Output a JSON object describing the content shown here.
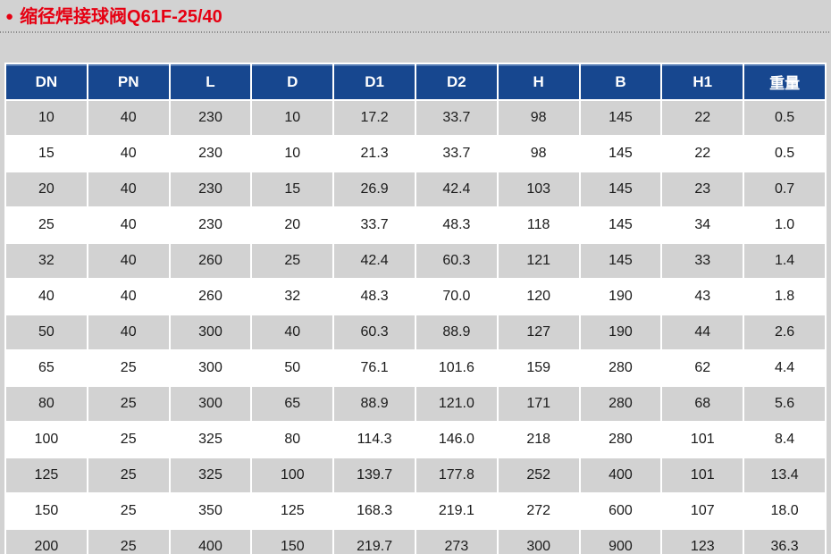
{
  "page": {
    "bullet": "●",
    "title": "缩径焊接球阀Q61F-25/40"
  },
  "colors": {
    "title_red": "#e60012",
    "header_blue": "#17478f",
    "row_gray": "#d2d2d2",
    "row_white": "#ffffff",
    "page_background": "#d2d2d2"
  },
  "table": {
    "headers": [
      "DN",
      "PN",
      "L",
      "D",
      "D1",
      "D2",
      "H",
      "B",
      "H1",
      "重量"
    ],
    "rows": [
      [
        "10",
        "40",
        "230",
        "10",
        "17.2",
        "33.7",
        "98",
        "145",
        "22",
        "0.5"
      ],
      [
        "15",
        "40",
        "230",
        "10",
        "21.3",
        "33.7",
        "98",
        "145",
        "22",
        "0.5"
      ],
      [
        "20",
        "40",
        "230",
        "15",
        "26.9",
        "42.4",
        "103",
        "145",
        "23",
        "0.7"
      ],
      [
        "25",
        "40",
        "230",
        "20",
        "33.7",
        "48.3",
        "118",
        "145",
        "34",
        "1.0"
      ],
      [
        "32",
        "40",
        "260",
        "25",
        "42.4",
        "60.3",
        "121",
        "145",
        "33",
        "1.4"
      ],
      [
        "40",
        "40",
        "260",
        "32",
        "48.3",
        "70.0",
        "120",
        "190",
        "43",
        "1.8"
      ],
      [
        "50",
        "40",
        "300",
        "40",
        "60.3",
        "88.9",
        "127",
        "190",
        "44",
        "2.6"
      ],
      [
        "65",
        "25",
        "300",
        "50",
        "76.1",
        "101.6",
        "159",
        "280",
        "62",
        "4.4"
      ],
      [
        "80",
        "25",
        "300",
        "65",
        "88.9",
        "121.0",
        "171",
        "280",
        "68",
        "5.6"
      ],
      [
        "100",
        "25",
        "325",
        "80",
        "114.3",
        "146.0",
        "218",
        "280",
        "101",
        "8.4"
      ],
      [
        "125",
        "25",
        "325",
        "100",
        "139.7",
        "177.8",
        "252",
        "400",
        "101",
        "13.4"
      ],
      [
        "150",
        "25",
        "350",
        "125",
        "168.3",
        "219.1",
        "272",
        "600",
        "107",
        "18.0"
      ],
      [
        "200",
        "25",
        "400",
        "150",
        "219.7",
        "273",
        "300",
        "900",
        "123",
        "36.3"
      ]
    ]
  }
}
